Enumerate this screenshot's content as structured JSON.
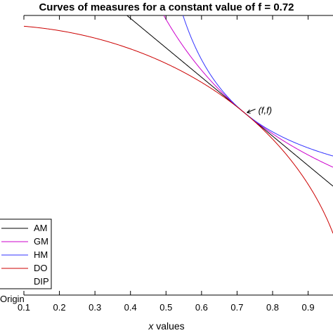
{
  "chart_data": {
    "type": "line",
    "title": "Curves of measures for a constant value of f = 0.72",
    "xlabel": "x values",
    "xlabel_italic_part": "x",
    "xlabel_rest": " values",
    "xlim": [
      0.1,
      0.97
    ],
    "ylim": [
      0.1,
      1.05
    ],
    "xticks": [
      "0.1",
      "0.2",
      "0.3",
      "0.4",
      "0.5",
      "0.6",
      "0.7",
      "0.8",
      "0.9"
    ],
    "grid": false,
    "legend_position": "bottom-left",
    "f": 0.72,
    "annotation": "(f,f)",
    "origin_label": "Origin",
    "series": [
      {
        "name": "AM",
        "color": "#000000",
        "dash": ""
      },
      {
        "name": "GM",
        "color": "#cc00cc",
        "dash": ""
      },
      {
        "name": "HM",
        "color": "#3333ff",
        "dash": ""
      },
      {
        "name": "DO",
        "color": "#cc0000",
        "dash": ""
      },
      {
        "name": "DIP",
        "color": "#00cc00",
        "dash": "6,4"
      }
    ]
  }
}
